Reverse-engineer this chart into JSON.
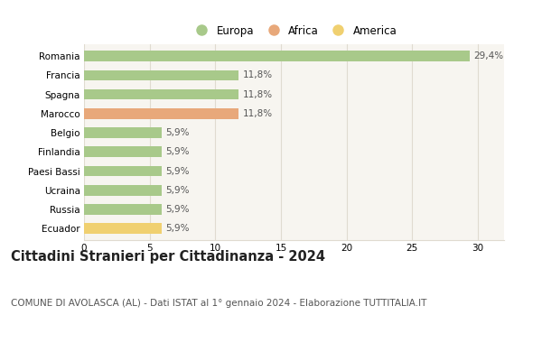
{
  "categories": [
    "Romania",
    "Francia",
    "Spagna",
    "Marocco",
    "Belgio",
    "Finlandia",
    "Paesi Bassi",
    "Ucraina",
    "Russia",
    "Ecuador"
  ],
  "values": [
    29.4,
    11.8,
    11.8,
    11.8,
    5.9,
    5.9,
    5.9,
    5.9,
    5.9,
    5.9
  ],
  "labels": [
    "29,4%",
    "11,8%",
    "11,8%",
    "11,8%",
    "5,9%",
    "5,9%",
    "5,9%",
    "5,9%",
    "5,9%",
    "5,9%"
  ],
  "colors": [
    "#a8c98a",
    "#a8c98a",
    "#a8c98a",
    "#e8a87a",
    "#a8c98a",
    "#a8c98a",
    "#a8c98a",
    "#a8c98a",
    "#a8c98a",
    "#f0d070"
  ],
  "legend_labels": [
    "Europa",
    "Africa",
    "America"
  ],
  "legend_colors": [
    "#a8c98a",
    "#e8a87a",
    "#f0d070"
  ],
  "title": "Cittadini Stranieri per Cittadinanza - 2024",
  "subtitle": "COMUNE DI AVOLASCA (AL) - Dati ISTAT al 1° gennaio 2024 - Elaborazione TUTTITALIA.IT",
  "xlim": [
    0,
    32
  ],
  "xticks": [
    0,
    5,
    10,
    15,
    20,
    25,
    30
  ],
  "plot_bg_color": "#f7f5f0",
  "fig_bg_color": "#ffffff",
  "grid_color": "#e0dbd0",
  "bar_height": 0.55,
  "title_fontsize": 10.5,
  "subtitle_fontsize": 7.5,
  "label_fontsize": 7.5,
  "tick_fontsize": 7.5,
  "legend_fontsize": 8.5
}
